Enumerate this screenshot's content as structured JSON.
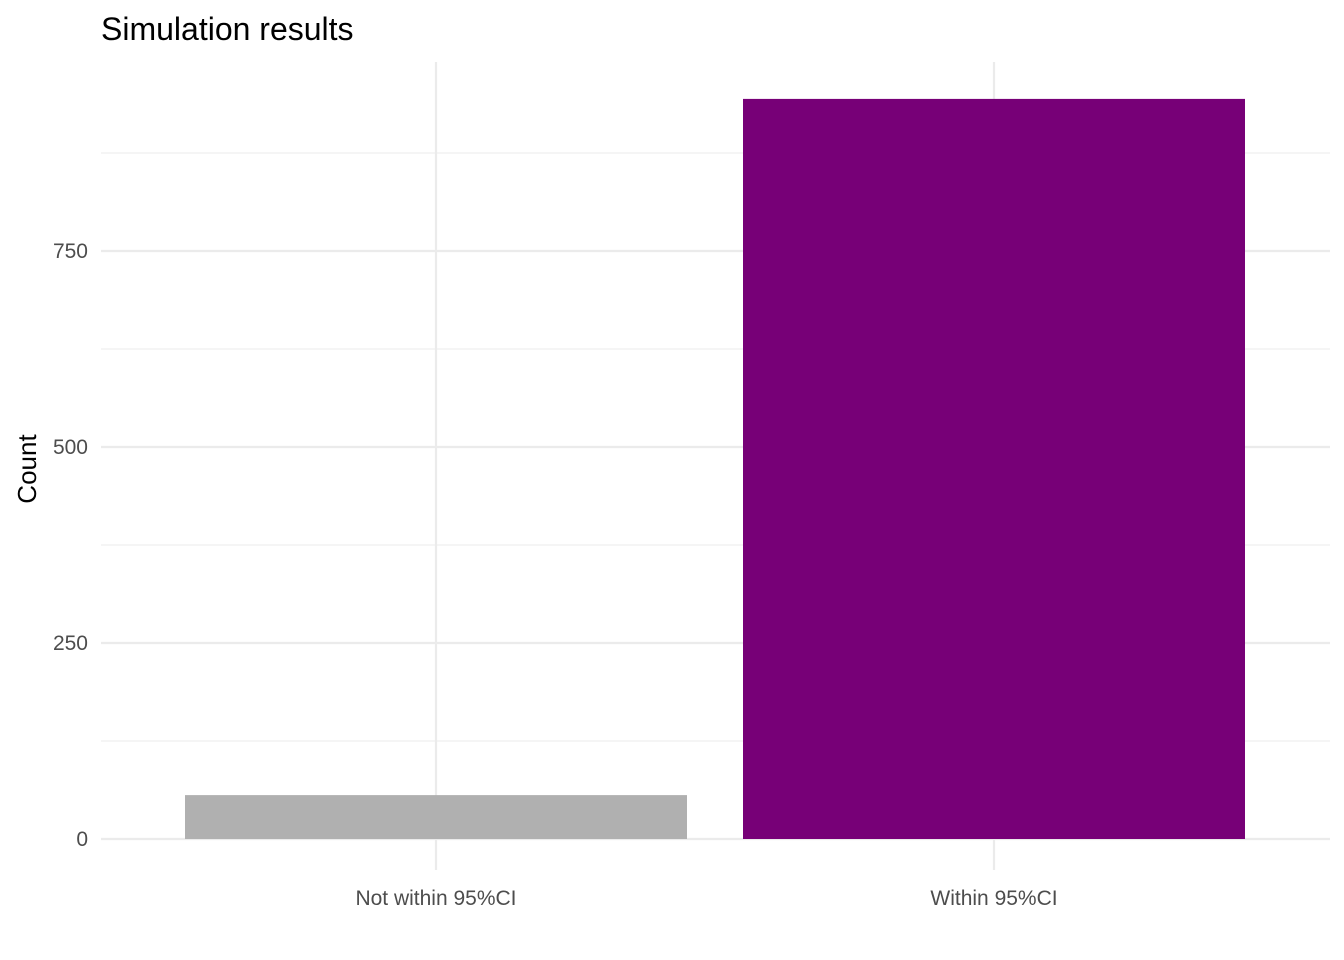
{
  "chart_data": {
    "type": "bar",
    "title": "Simulation results",
    "xlabel": "",
    "ylabel": "Count",
    "categories": [
      "Not within 95%CI",
      "Within 95%CI"
    ],
    "values": [
      56,
      944
    ],
    "bar_colors": [
      "#B0B0B0",
      "#770077"
    ],
    "ylim": [
      0,
      1000
    ],
    "yticks": [
      0,
      250,
      500,
      750
    ],
    "ytick_labels": [
      "0",
      "250",
      "500",
      "750"
    ],
    "grid": true,
    "legend": "none"
  }
}
